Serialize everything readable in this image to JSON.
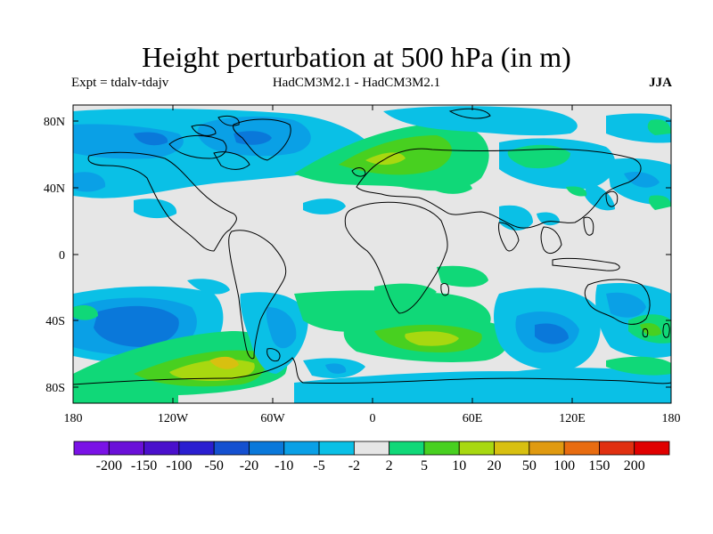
{
  "title": "Height perturbation at 500 hPa (in m)",
  "experiment": "Expt = tdalv-tdajv",
  "models": "HadCM3M2.1 - HadCM3M2.1",
  "season": "JJA",
  "axes": {
    "lon_ticks": [
      "180",
      "120W",
      "60W",
      "0",
      "60E",
      "120E",
      "180"
    ],
    "lat_ticks": [
      "80N",
      "40N",
      "0",
      "40S",
      "80S"
    ]
  },
  "colorbar": {
    "labels": [
      "-200",
      "-150",
      "-100",
      "-50",
      "-20",
      "-10",
      "-5",
      "-2",
      "2",
      "5",
      "10",
      "20",
      "50",
      "100",
      "150",
      "200"
    ],
    "colors": [
      "#7a12e6",
      "#6a10d8",
      "#4a10cc",
      "#2a1ed0",
      "#1450d0",
      "#0a78da",
      "#0aa0e6",
      "#0ac0e6",
      "#e6e6e6",
      "#10d878",
      "#48d020",
      "#a8d810",
      "#d8c010",
      "#e09a10",
      "#e86c10",
      "#e03010",
      "#e00000"
    ]
  },
  "chart_data": {
    "type": "heatmap",
    "variable": "500 hPa height perturbation",
    "units": "m",
    "levels": [
      -200,
      -150,
      -100,
      -50,
      -20,
      -10,
      -5,
      -2,
      2,
      5,
      10,
      20,
      50,
      100,
      150,
      200
    ],
    "xlim": [
      -180,
      180
    ],
    "ylim": [
      -90,
      90
    ],
    "features": [
      {
        "region": "North Atlantic / Europe",
        "sign": "positive",
        "range": "5 to 20"
      },
      {
        "region": "Arctic / Greenland / Canada",
        "sign": "negative",
        "range": "-2 to -10"
      },
      {
        "region": "South Pacific mid-latitudes",
        "sign": "negative",
        "range": "-5 to -20"
      },
      {
        "region": "Amundsen Sea sector",
        "sign": "positive",
        "range": "20 to 50"
      },
      {
        "region": "South Atlantic / Indian Ocean",
        "sign": "positive",
        "range": "5 to 20"
      },
      {
        "region": "Southern Indian Ocean south of Australia",
        "sign": "negative",
        "range": "-5 to -20"
      }
    ]
  }
}
